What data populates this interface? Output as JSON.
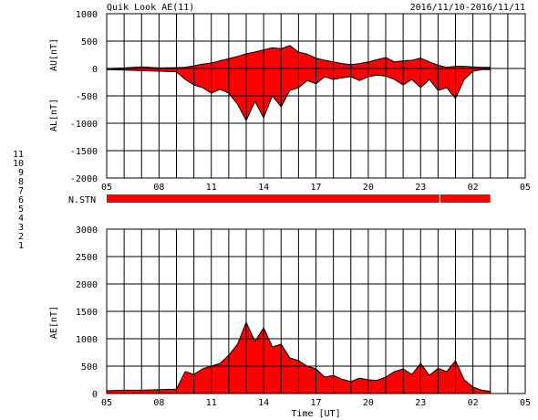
{
  "header": {
    "title": "Quik Look AE(11)",
    "date_range": "2016/11/10-2016/11/11"
  },
  "station_legend": {
    "label": "N.STN",
    "numbers": [
      {
        "label": "11",
        "color": "#00d8ff"
      },
      {
        "label": "10",
        "color": "#ff00ff"
      },
      {
        "label": "9",
        "color": "#0000c0"
      },
      {
        "label": "8",
        "color": "#ffff00"
      },
      {
        "label": "7",
        "color": "#00ff70"
      },
      {
        "label": "6",
        "color": "#ff0000"
      },
      {
        "label": "5",
        "color": "#d0d0d0"
      },
      {
        "label": "4",
        "color": "#d0d0d0"
      },
      {
        "label": "3",
        "color": "#00c0c0"
      },
      {
        "label": "2",
        "color": "#c000c0"
      },
      {
        "label": "1",
        "color": "#0000c0"
      }
    ]
  },
  "colors": {
    "fill": "#ff0000",
    "line": "#000000",
    "grid": "#000000"
  },
  "chart_data": [
    {
      "id": "au_al",
      "type": "area",
      "ylabel_top": "AU[nT]",
      "ylabel_bottom": "AL[nT]",
      "ylim": [
        -2000,
        1000
      ],
      "yticks": [
        "1000",
        "500",
        "0",
        "-500",
        "-1000",
        "-1500",
        "-2000"
      ],
      "yticks_values": [
        1000,
        500,
        0,
        -500,
        -1000,
        -1500,
        -2000
      ],
      "xticks": [
        "05",
        "08",
        "11",
        "14",
        "17",
        "20",
        "23",
        "02",
        "05"
      ],
      "x_unit": "hours UT from 05",
      "grid": true,
      "series": [
        {
          "values_name": "AU",
          "x": [
            0,
            1,
            2,
            3,
            4,
            4.5,
            5,
            5.5,
            6,
            6.5,
            7,
            7.5,
            8,
            8.5,
            9,
            9.5,
            10,
            10.5,
            11,
            11.5,
            12,
            12.5,
            13,
            13.5,
            14,
            14.5,
            15,
            15.5,
            16,
            16.5,
            17,
            17.5,
            18,
            18.5,
            19,
            19.5,
            20,
            20.5,
            21,
            21.5,
            22
          ],
          "values": [
            0,
            10,
            30,
            10,
            15,
            20,
            50,
            80,
            100,
            140,
            180,
            220,
            270,
            300,
            340,
            380,
            360,
            420,
            300,
            260,
            190,
            150,
            120,
            90,
            70,
            90,
            120,
            160,
            200,
            120,
            140,
            150,
            190,
            120,
            60,
            20,
            40,
            40,
            30,
            20,
            20
          ]
        },
        {
          "values_name": "AL",
          "x": [
            0,
            1,
            2,
            3,
            4,
            4.5,
            5,
            5.5,
            6,
            6.5,
            7,
            7.5,
            8,
            8.5,
            9,
            9.5,
            10,
            10.5,
            11,
            11.5,
            12,
            12.5,
            13,
            13.5,
            14,
            14.5,
            15,
            15.5,
            16,
            16.5,
            17,
            17.5,
            18,
            18.5,
            19,
            19.5,
            20,
            20.5,
            21,
            21.5,
            22
          ],
          "values": [
            -20,
            -30,
            -40,
            -50,
            -60,
            -200,
            -300,
            -350,
            -450,
            -380,
            -450,
            -650,
            -950,
            -600,
            -900,
            -500,
            -700,
            -400,
            -350,
            -220,
            -280,
            -150,
            -200,
            -170,
            -150,
            -220,
            -150,
            -120,
            -140,
            -200,
            -300,
            -200,
            -350,
            -200,
            -400,
            -350,
            -550,
            -200,
            -50,
            -20,
            -20
          ]
        }
      ]
    },
    {
      "id": "nstn",
      "type": "bar",
      "label": "N.STN",
      "x_range": [
        0,
        22
      ],
      "gap_at": 19.1
    },
    {
      "id": "ae",
      "type": "area",
      "ylabel": "AE[nT]",
      "xlabel": "Time [UT]",
      "ylim": [
        0,
        3000
      ],
      "yticks": [
        "3000",
        "2500",
        "2000",
        "1500",
        "1000",
        "500",
        "0"
      ],
      "yticks_values": [
        3000,
        2500,
        2000,
        1500,
        1000,
        500,
        0
      ],
      "xticks": [
        "05",
        "08",
        "11",
        "14",
        "17",
        "20",
        "23",
        "02",
        "05"
      ],
      "grid": true,
      "series": [
        {
          "name": "AE",
          "x": [
            0,
            1,
            2,
            3,
            4,
            4.5,
            5,
            5.5,
            6,
            6.5,
            7,
            7.5,
            8,
            8.5,
            9,
            9.5,
            10,
            10.5,
            11,
            11.5,
            12,
            12.5,
            13,
            13.5,
            14,
            14.5,
            15,
            15.5,
            16,
            16.5,
            17,
            17.5,
            18,
            18.5,
            19,
            19.5,
            20,
            20.5,
            21,
            21.5,
            22
          ],
          "values": [
            50,
            60,
            60,
            70,
            80,
            400,
            350,
            450,
            500,
            550,
            700,
            900,
            1300,
            950,
            1200,
            850,
            900,
            650,
            600,
            500,
            450,
            300,
            330,
            260,
            220,
            280,
            250,
            240,
            300,
            400,
            450,
            350,
            550,
            330,
            460,
            400,
            600,
            250,
            120,
            60,
            40
          ]
        }
      ]
    }
  ]
}
